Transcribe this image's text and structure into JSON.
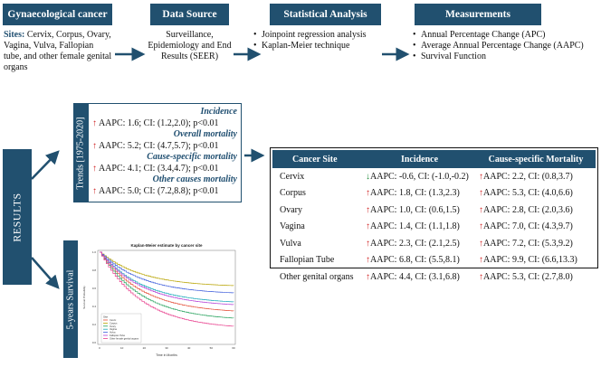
{
  "columns": [
    {
      "header": "Gynaecological cancer"
    },
    {
      "header": "Data Source",
      "text": "Surveillance, Epidemiology and End Results (SEER)"
    },
    {
      "header": "Statistical Analysis",
      "bullets": [
        "Joinpoint regression analysis",
        "Kaplan-Meier technique"
      ]
    },
    {
      "header": "Measurements",
      "bullets": [
        "Annual Percentage Change (APC)",
        "Average Annual Percentage Change (AAPC)",
        "Survival Function"
      ]
    }
  ],
  "sites": {
    "label": "Sites:",
    "text": "Cervix, Corpus, Ovary, Vagina, Vulva, Fallopian tube, and other female genital organs"
  },
  "results": {
    "label": "RESULTS",
    "trends_tab": "Trends [1975-2020]",
    "survival_tab": "5-years Survival",
    "trends": [
      {
        "heading": "Incidence",
        "value": "AAPC: 1.6; CI: (1.2,2.0); p<0.01"
      },
      {
        "heading": "Overall mortality",
        "value": "AAPC: 5.2; CI: (4.7,5.7); p<0.01"
      },
      {
        "heading": "Cause-specific mortality",
        "value": "AAPC: 4.1; CI: (3.4,4.7); p<0.01"
      },
      {
        "heading": "Other causes mortality",
        "value": "AAPC: 5.0; CI: (7.2,8.8); p<0.01"
      }
    ]
  },
  "km_plot": {
    "title": "Kaplan-Meier estimate by cancer site",
    "xlabel": "Time in Months",
    "ylabel": "Survival Probability",
    "legend_title": "Site",
    "legend": [
      "Cervix",
      "Corpus",
      "Ovary",
      "Vagina",
      "Vulva",
      "Fallopian Tube",
      "Other female genital organs"
    ],
    "x_ticks": [
      "0",
      "10",
      "20",
      "30",
      "40",
      "50",
      "60"
    ],
    "y_ticks": [
      "1.0",
      "0.8",
      "0.6",
      "0.4",
      "0.2",
      "0.0"
    ],
    "colors": [
      "#e34a33",
      "#b8a300",
      "#22a05a",
      "#16a7b8",
      "#3b5bdb",
      "#b43fd6",
      "#e83e8c"
    ]
  },
  "table": {
    "headers": [
      "Cancer Site",
      "Incidence",
      "Cause-specific Mortality"
    ],
    "rows": [
      {
        "site": "Cervix",
        "inc_dir": "down",
        "inc": "AAPC: -0.6, CI: (-1.0,-0.2)",
        "mort_dir": "up",
        "mort": "AAPC: 2.2, CI: (0.8,3.7)"
      },
      {
        "site": "Corpus",
        "inc_dir": "up",
        "inc": "AAPC: 1.8, CI: (1.3,2.3)",
        "mort_dir": "up",
        "mort": "AAPC: 5.3, CI: (4.0,6.6)"
      },
      {
        "site": "Ovary",
        "inc_dir": "up",
        "inc": "AAPC: 1.0, CI: (0.6,1.5)",
        "mort_dir": "up",
        "mort": "AAPC: 2.8, CI: (2.0,3.6)"
      },
      {
        "site": "Vagina",
        "inc_dir": "up",
        "inc": "AAPC: 1.4, CI: (1.1,1.8)",
        "mort_dir": "up",
        "mort": "AAPC: 7.0, CI: (4.3,9.7)"
      },
      {
        "site": "Vulva",
        "inc_dir": "up",
        "inc": "AAPC: 2.3, CI: (2.1,2.5)",
        "mort_dir": "up",
        "mort": "AAPC: 7.2, CI: (5.3,9.2)"
      },
      {
        "site": "Fallopian Tube",
        "inc_dir": "up",
        "inc": "AAPC: 6.8, CI: (5.5,8.1)",
        "mort_dir": "up",
        "mort": "AAPC: 9.9, CI: (6.6,13.3)"
      },
      {
        "site": "Other genital organs",
        "inc_dir": "up",
        "inc": "AAPC: 4.4, CI: (3.1,6.8)",
        "mort_dir": "up",
        "mort": "AAPC: 5.3, CI: (2.7,8.0)"
      }
    ]
  },
  "arrow_color": "#21506f"
}
